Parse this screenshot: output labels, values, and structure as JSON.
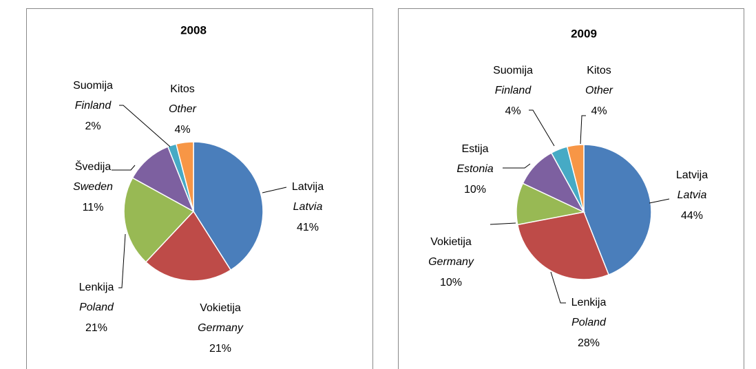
{
  "chart_data": [
    {
      "type": "pie",
      "title": "2008",
      "categories": [
        "Latvija",
        "Vokietija",
        "Lenkija",
        "Švedija",
        "Suomija",
        "Kitos"
      ],
      "categories_en": [
        "Latvia",
        "Germany",
        "Poland",
        "Sweden",
        "Finland",
        "Other"
      ],
      "values": [
        41,
        21,
        21,
        11,
        2,
        4
      ],
      "value_labels": [
        "41%",
        "21%",
        "21%",
        "11%",
        "2%",
        "4%"
      ],
      "colors": [
        "#4a7ebb",
        "#be4b48",
        "#98b954",
        "#7d60a0",
        "#46aac5",
        "#f79646"
      ]
    },
    {
      "type": "pie",
      "title": "2009",
      "categories": [
        "Latvija",
        "Lenkija",
        "Vokietija",
        "Estija",
        "Suomija",
        "Kitos"
      ],
      "categories_en": [
        "Latvia",
        "Poland",
        "Germany",
        "Estonia",
        "Finland",
        "Other"
      ],
      "values": [
        44,
        28,
        10,
        10,
        4,
        4
      ],
      "value_labels": [
        "44%",
        "28%",
        "10%",
        "10%",
        "4%",
        "4%"
      ],
      "colors": [
        "#4a7ebb",
        "#be4b48",
        "#98b954",
        "#7d60a0",
        "#46aac5",
        "#f79646"
      ]
    }
  ]
}
